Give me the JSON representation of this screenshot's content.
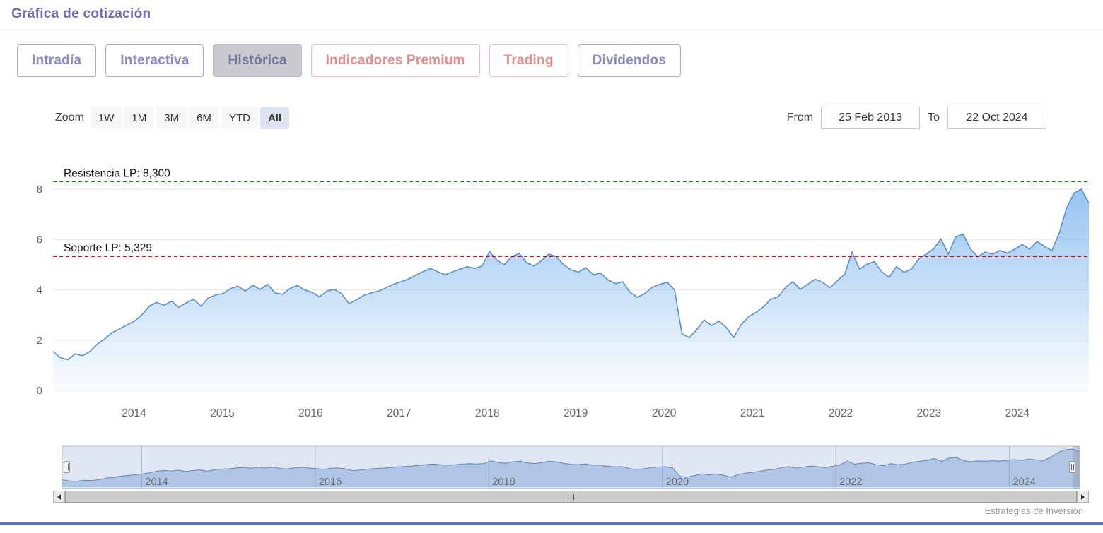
{
  "header": {
    "title": "Gráfica de cotización"
  },
  "tabs": [
    {
      "label": "Intradía",
      "style": "purple",
      "selected": false
    },
    {
      "label": "Interactiva",
      "style": "purple",
      "selected": false
    },
    {
      "label": "Histórica",
      "style": "purple",
      "selected": true
    },
    {
      "label": "Indicadores Premium",
      "style": "salmon",
      "selected": false
    },
    {
      "label": "Trading",
      "style": "salmon",
      "selected": false
    },
    {
      "label": "Dividendos",
      "style": "purple",
      "selected": false
    }
  ],
  "toolbar": {
    "zoom_label": "Zoom",
    "zoom_buttons": [
      "1W",
      "1M",
      "3M",
      "6M",
      "YTD",
      "All"
    ],
    "zoom_selected": "All",
    "from_label": "From",
    "from_value": "25 Feb 2013",
    "to_label": "To",
    "to_value": "22 Oct 2024"
  },
  "credits": "Estrategias de Inversión",
  "colors": {
    "title_accent": "#6c6cb2",
    "tab_purple": "#8c8cc0",
    "tab_salmon": "#e28f8f",
    "bottom_bar": "#5673c6",
    "resistance_line": "#008a10",
    "support_line": "#a40000"
  },
  "chart_data": {
    "type": "area",
    "title": "",
    "xlabel": "",
    "ylabel": "",
    "frequency": "monthly",
    "x_start": 2013.0833,
    "x_end": 2024.81,
    "x_start_date": "25 Feb 2013",
    "x_end_date": "22 Oct 2024",
    "ylim": [
      0,
      9.2
    ],
    "y_ticks": [
      0,
      2,
      4,
      6,
      8
    ],
    "x_ticks": [
      2014,
      2015,
      2016,
      2017,
      2018,
      2019,
      2020,
      2021,
      2022,
      2023,
      2024
    ],
    "navigator_ticks": [
      2014,
      2016,
      2018,
      2020,
      2022,
      2024
    ],
    "annotations": [
      {
        "label": "Resistencia LP: 8,300",
        "value": 8.3,
        "color": "#008a10"
      },
      {
        "label": "Soporte LP: 5,329",
        "value": 5.329,
        "color": "#a40000"
      }
    ],
    "series_color": "#5b8fc8",
    "fill_top": "rgba(124,181,236,0.8)",
    "fill_bottom": "rgba(124,181,236,0.03)",
    "values": [
      1.55,
      1.3,
      1.22,
      1.45,
      1.38,
      1.55,
      1.85,
      2.05,
      2.3,
      2.45,
      2.6,
      2.75,
      3.0,
      3.35,
      3.5,
      3.38,
      3.55,
      3.3,
      3.48,
      3.62,
      3.35,
      3.68,
      3.8,
      3.85,
      4.05,
      4.15,
      3.95,
      4.18,
      4.02,
      4.22,
      3.88,
      3.82,
      4.05,
      4.18,
      4.0,
      3.9,
      3.72,
      3.95,
      4.02,
      3.85,
      3.45,
      3.6,
      3.78,
      3.88,
      3.95,
      4.08,
      4.22,
      4.32,
      4.42,
      4.58,
      4.72,
      4.85,
      4.72,
      4.6,
      4.72,
      4.82,
      4.92,
      4.85,
      4.95,
      5.52,
      5.18,
      5.0,
      5.32,
      5.45,
      5.08,
      4.95,
      5.15,
      5.42,
      5.32,
      5.0,
      4.8,
      4.7,
      4.88,
      4.6,
      4.66,
      4.4,
      4.25,
      4.32,
      3.9,
      3.7,
      3.86,
      4.1,
      4.22,
      4.3,
      4.0,
      2.25,
      2.1,
      2.42,
      2.8,
      2.58,
      2.76,
      2.5,
      2.1,
      2.62,
      2.92,
      3.1,
      3.32,
      3.62,
      3.72,
      4.1,
      4.32,
      4.02,
      4.22,
      4.42,
      4.3,
      4.08,
      4.36,
      4.62,
      5.5,
      4.82,
      5.02,
      5.12,
      4.72,
      4.5,
      4.92,
      4.7,
      4.82,
      5.22,
      5.42,
      5.62,
      6.02,
      5.42,
      6.1,
      6.22,
      5.62,
      5.32,
      5.5,
      5.42,
      5.56,
      5.46,
      5.62,
      5.8,
      5.62,
      5.92,
      5.72,
      5.56,
      6.25,
      7.25,
      7.85,
      8.0,
      7.45
    ]
  }
}
